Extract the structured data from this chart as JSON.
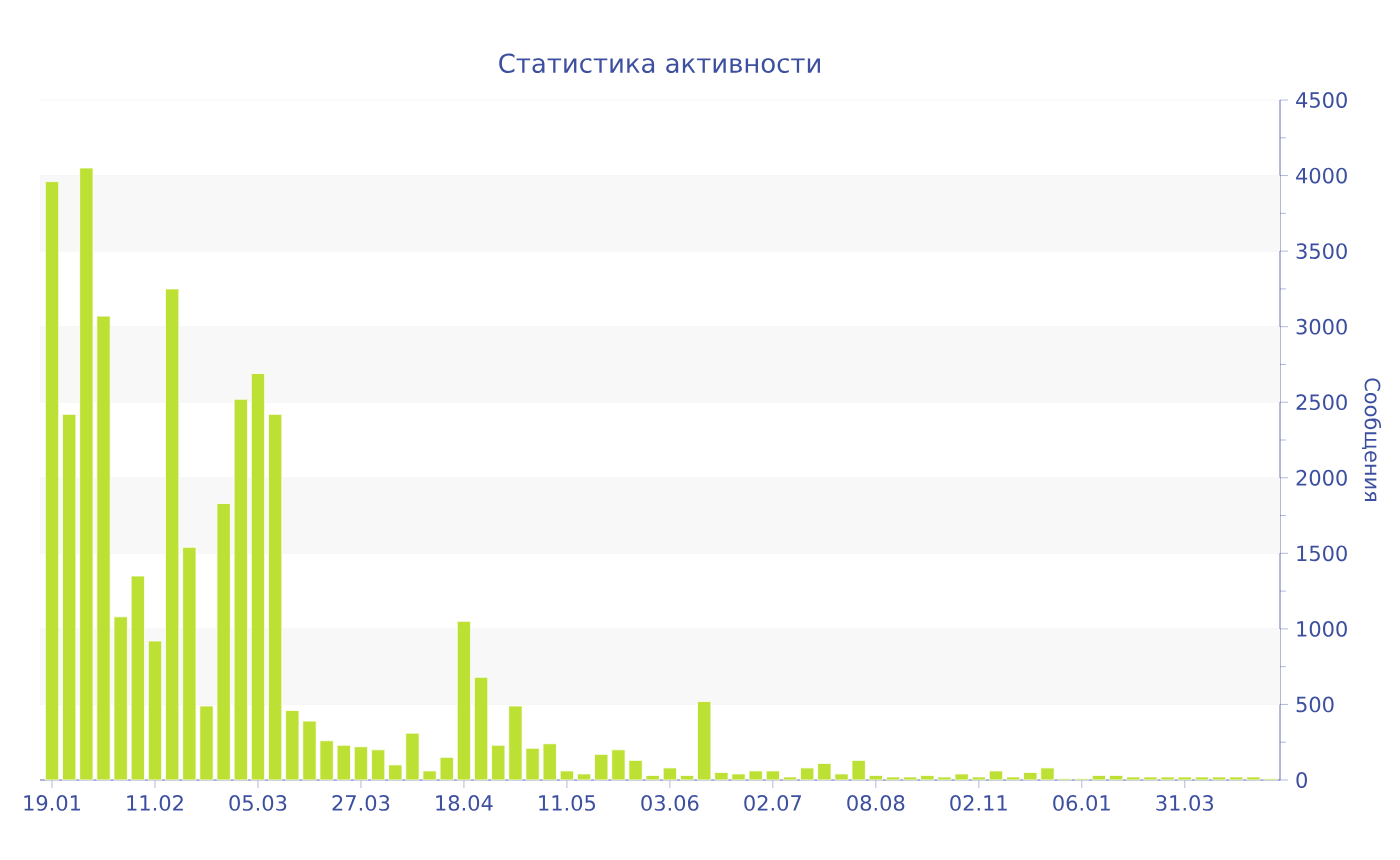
{
  "chart_data": {
    "type": "bar",
    "title": "Статистика активности",
    "ylabel": "Сообщения",
    "categories": [
      "19.01",
      null,
      null,
      null,
      null,
      null,
      "11.02",
      null,
      null,
      null,
      null,
      null,
      "05.03",
      null,
      null,
      null,
      null,
      null,
      "27.03",
      null,
      null,
      null,
      null,
      null,
      "18.04",
      null,
      null,
      null,
      null,
      null,
      "11.05",
      null,
      null,
      null,
      null,
      null,
      "03.06",
      null,
      null,
      null,
      null,
      null,
      "02.07",
      null,
      null,
      null,
      null,
      null,
      "08.08",
      null,
      null,
      null,
      null,
      null,
      "02.11",
      null,
      null,
      null,
      null,
      null,
      "06.01",
      null,
      null,
      null,
      null,
      null,
      "31.03",
      null,
      null,
      null,
      null,
      null
    ],
    "values": [
      3960,
      2420,
      4050,
      3070,
      1080,
      1350,
      920,
      3250,
      1540,
      490,
      1830,
      2520,
      2690,
      2420,
      460,
      390,
      260,
      230,
      220,
      200,
      100,
      310,
      60,
      150,
      1050,
      680,
      230,
      490,
      210,
      240,
      60,
      40,
      170,
      200,
      130,
      30,
      80,
      30,
      520,
      50,
      40,
      60,
      60,
      20,
      80,
      110,
      40,
      130,
      30,
      20,
      20,
      30,
      20,
      40,
      20,
      60,
      20,
      50,
      80,
      10,
      10,
      30,
      30,
      20,
      20,
      20,
      20,
      20,
      20,
      20,
      20,
      10
    ],
    "color": "#bde035",
    "ylim": [
      0,
      4500
    ],
    "yticks": [
      0,
      500,
      1000,
      1500,
      2000,
      2500,
      3000,
      3500,
      4000,
      4500
    ],
    "grid": true
  }
}
